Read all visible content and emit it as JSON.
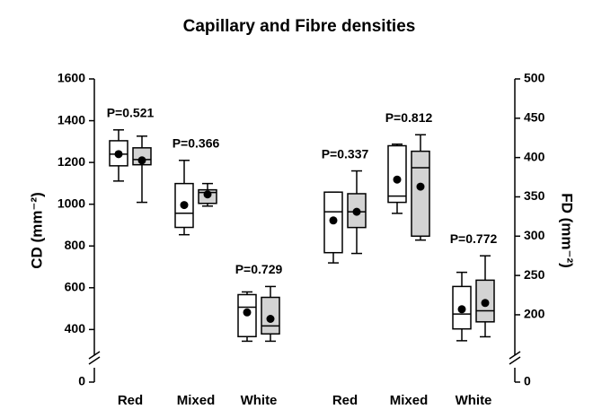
{
  "chart_data": {
    "type": "box",
    "title": "Capillary and Fibre densities",
    "ylabel": "CD (mm⁻²)",
    "y2label": "FD (mm⁻²)",
    "categories": [
      "Red",
      "Mixed",
      "White",
      "Red",
      "Mixed",
      "White"
    ],
    "category_axis": [
      "y",
      "y",
      "y",
      "y2",
      "y2",
      "y2"
    ],
    "p_labels": [
      "P=0.521",
      "P=0.366",
      "P=0.729",
      "P=0.337",
      "P=0.812",
      "P=0.772"
    ],
    "ylim": [
      0,
      1600
    ],
    "yticks": [
      0,
      400,
      600,
      800,
      1000,
      1200,
      1400,
      1600
    ],
    "y_break": [
      0,
      320
    ],
    "y2lim": [
      0,
      500
    ],
    "y2ticks": [
      0,
      200,
      250,
      300,
      350,
      400,
      450,
      500
    ],
    "y2_break": [
      0,
      160
    ],
    "series": [
      {
        "color": "#ffffff",
        "whisker_low": [
          1111,
          854,
          344,
          266,
          329,
          167
        ],
        "q1": [
          1184,
          889,
          366,
          279,
          343,
          182
        ],
        "median": [
          1240,
          957,
          507,
          331,
          351,
          201
        ],
        "q3": [
          1304,
          1099,
          567,
          356,
          415,
          236
        ],
        "whisker_high": [
          1356,
          1210,
          580,
          356,
          417,
          254
        ],
        "mean": [
          1240,
          996,
          482,
          320,
          372,
          207
        ]
      },
      {
        "color": "#d3d3d3",
        "whisker_low": [
          1009,
          991,
          344,
          278,
          295,
          172
        ],
        "q1": [
          1189,
          1004,
          379,
          311,
          300,
          191
        ],
        "median": [
          1214,
          1056,
          417,
          331,
          387,
          205
        ],
        "q3": [
          1270,
          1069,
          554,
          354,
          408,
          244
        ],
        "whisker_high": [
          1326,
          1099,
          606,
          383,
          429,
          275
        ],
        "mean": [
          1210,
          1047,
          451,
          331,
          363,
          215
        ]
      }
    ]
  }
}
